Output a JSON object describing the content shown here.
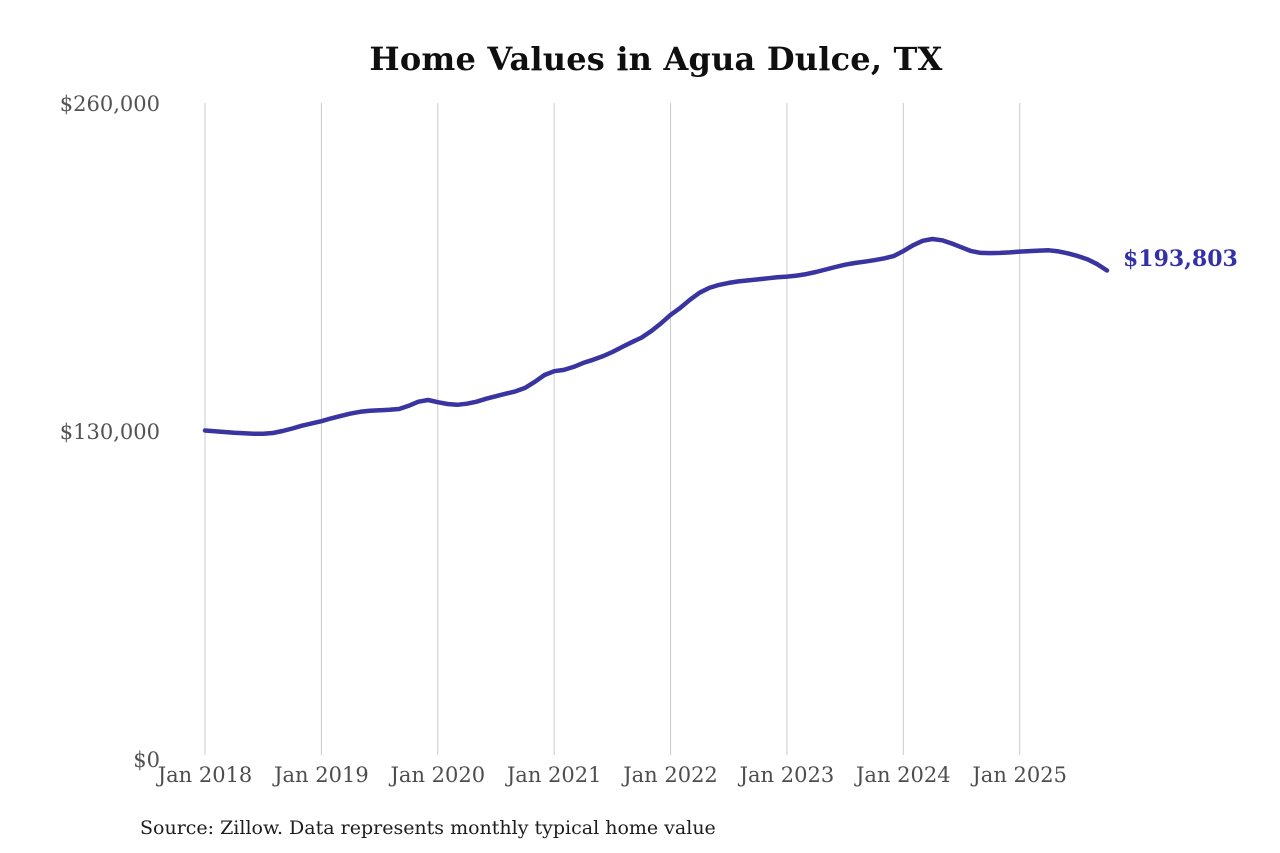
{
  "chart_data": {
    "type": "line",
    "title": "Home Values in Agua Dulce, TX",
    "source_note": "Source: Zillow. Data represents monthly typical home value",
    "end_label": "$193,803",
    "latest_value": 193803,
    "xlabel": "",
    "ylabel": "",
    "ylim": [
      0,
      260000
    ],
    "grid": "vertical-only",
    "legend": "none",
    "line_color": "#3a34a0",
    "end_label_color": "#3430a8",
    "grid_color": "#cbcbcb",
    "y_ticks": [
      {
        "label": "$0",
        "value": 0
      },
      {
        "label": "$130,000",
        "value": 130000
      },
      {
        "label": "$260,000",
        "value": 260000
      }
    ],
    "x_ticks": [
      "Jan 2018",
      "Jan 2019",
      "Jan 2020",
      "Jan 2021",
      "Jan 2022",
      "Jan 2023",
      "Jan 2024",
      "Jan 2025"
    ],
    "start_month": "2018-01",
    "end_month": "2025-10",
    "series": [
      {
        "name": "Monthly typical home value",
        "monthly_values": [
          130400,
          130100,
          129800,
          129500,
          129300,
          129100,
          129100,
          129400,
          130200,
          131200,
          132300,
          133200,
          134100,
          135200,
          136200,
          137100,
          137800,
          138200,
          138400,
          138600,
          138900,
          140200,
          141800,
          142500,
          141600,
          140900,
          140600,
          141000,
          141800,
          143000,
          144000,
          145000,
          145900,
          147300,
          149700,
          152400,
          153900,
          154400,
          155600,
          157200,
          158400,
          159800,
          161500,
          163500,
          165400,
          167200,
          169800,
          172800,
          176200,
          179000,
          182200,
          185000,
          186900,
          188100,
          188900,
          189500,
          189900,
          190300,
          190700,
          191100,
          191400,
          191800,
          192400,
          193200,
          194200,
          195200,
          196100,
          196800,
          197300,
          197900,
          198600,
          199500,
          201500,
          203800,
          205600,
          206300,
          205800,
          204500,
          203000,
          201500,
          200800,
          200700,
          200800,
          201000,
          201300,
          201500,
          201700,
          201800,
          201400,
          200600,
          199500,
          198200,
          196300,
          193803
        ]
      }
    ]
  }
}
